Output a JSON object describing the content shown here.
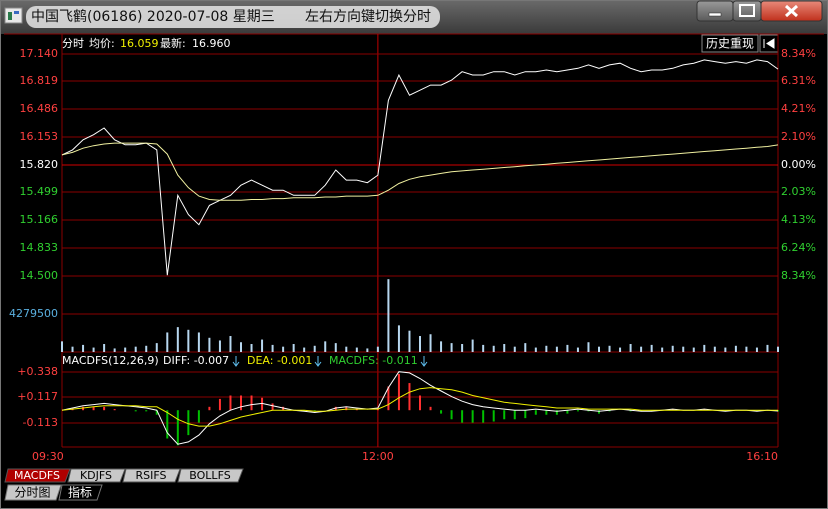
{
  "window": {
    "title": "中国飞鹤(06186) 2020-07-08 星期三",
    "hint": "左右方向键切换分时"
  },
  "toolbar": {
    "mode": "分时",
    "avg_label": "均价:",
    "avg": "16.059",
    "last_label": "最新:",
    "last": "16.960",
    "history_button": "历史重现"
  },
  "macd_header": {
    "name": "MACDFS(12,26,9)",
    "diff": "DIFF: -0.007",
    "dea": "DEA: -0.001",
    "macdfs": "MACDFS: -0.011"
  },
  "indicator_tabs": [
    "MACDFS",
    "KDJFS",
    "RSIFS",
    "BOLLFS"
  ],
  "view_tabs": [
    "分时图",
    "指标"
  ],
  "chart_data": [
    {
      "type": "line",
      "ylim": [
        14.5,
        17.14
      ],
      "yticks": [
        {
          "value": 17.14,
          "label": "17.140"
        },
        {
          "value": 16.819,
          "label": "16.819"
        },
        {
          "value": 16.486,
          "label": "16.486"
        },
        {
          "value": 16.153,
          "label": "16.153"
        },
        {
          "value": 15.82,
          "label": "15.820"
        },
        {
          "value": 15.499,
          "label": "15.499"
        },
        {
          "value": 15.166,
          "label": "15.166"
        },
        {
          "value": 14.833,
          "label": "14.833"
        },
        {
          "value": 14.5,
          "label": "14.500"
        }
      ],
      "y2lim": [
        -8.34,
        8.34
      ],
      "y2ticks": [
        {
          "value": 8.34,
          "label": "8.34%"
        },
        {
          "value": 6.31,
          "label": "6.31%"
        },
        {
          "value": 4.21,
          "label": "4.21%"
        },
        {
          "value": 2.1,
          "label": "2.10%"
        },
        {
          "value": 0,
          "label": "0.00%"
        },
        {
          "value": -2.03,
          "label": "2.03%"
        },
        {
          "value": -4.13,
          "label": "4.13%"
        },
        {
          "value": -6.24,
          "label": "6.24%"
        },
        {
          "value": -8.34,
          "label": "8.34%"
        }
      ],
      "grid": true,
      "series": [
        {
          "color": "#ffffff",
          "values": [
            15.94,
            16.0,
            16.12,
            16.18,
            16.26,
            16.12,
            16.06,
            16.06,
            16.08,
            16.0,
            14.51,
            15.46,
            15.23,
            15.11,
            15.34,
            15.4,
            15.46,
            15.58,
            15.64,
            15.58,
            15.52,
            15.52,
            15.46,
            15.46,
            15.46,
            15.58,
            15.76,
            15.64,
            15.64,
            15.61,
            15.7,
            16.59,
            16.89,
            16.65,
            16.71,
            16.77,
            16.77,
            16.83,
            16.93,
            16.89,
            16.89,
            16.93,
            16.93,
            16.89,
            16.93,
            16.93,
            16.95,
            16.93,
            16.95,
            16.97,
            17.01,
            16.97,
            17.01,
            17.03,
            16.97,
            16.93,
            16.95,
            16.95,
            16.97,
            17.01,
            17.03,
            17.07,
            17.05,
            17.03,
            17.05,
            17.03,
            17.07,
            17.05,
            16.96
          ]
        },
        {
          "color": "#f0f0a0",
          "values": [
            15.94,
            15.97,
            16.02,
            16.05,
            16.07,
            16.08,
            16.08,
            16.08,
            16.08,
            16.07,
            15.95,
            15.7,
            15.55,
            15.45,
            15.41,
            15.4,
            15.4,
            15.4,
            15.41,
            15.41,
            15.42,
            15.42,
            15.43,
            15.43,
            15.43,
            15.44,
            15.44,
            15.45,
            15.45,
            15.45,
            15.46,
            15.52,
            15.6,
            15.65,
            15.68,
            15.7,
            15.72,
            15.74,
            15.75,
            15.76,
            15.77,
            15.78,
            15.79,
            15.8,
            15.81,
            15.82,
            15.83,
            15.84,
            15.85,
            15.86,
            15.87,
            15.88,
            15.89,
            15.9,
            15.91,
            15.92,
            15.93,
            15.94,
            15.95,
            15.96,
            15.97,
            15.98,
            15.99,
            16.0,
            16.01,
            16.02,
            16.03,
            16.04,
            16.059
          ]
        }
      ]
    },
    {
      "type": "bar",
      "ylim": [
        0,
        8559000
      ],
      "yticks": [
        4279500
      ],
      "color": "#b8d8f0",
      "values": [
        1200000,
        600000,
        800000,
        500000,
        900000,
        400000,
        500000,
        600000,
        700000,
        1000000,
        2200000,
        2800000,
        2500000,
        2200000,
        1600000,
        1300000,
        1800000,
        1100000,
        900000,
        1400000,
        800000,
        600000,
        900000,
        500000,
        700000,
        1200000,
        1000000,
        600000,
        500000,
        400000,
        600000,
        8200000,
        3000000,
        2400000,
        1800000,
        2000000,
        1200000,
        1000000,
        900000,
        1400000,
        800000,
        700000,
        900000,
        600000,
        1000000,
        500000,
        700000,
        600000,
        800000,
        500000,
        1100000,
        600000,
        700000,
        500000,
        900000,
        600000,
        800000,
        500000,
        700000,
        600000,
        500000,
        800000,
        600000,
        500000,
        700000,
        600000,
        500000,
        800000,
        600000
      ]
    },
    {
      "type": "macd",
      "ylim": [
        -0.325,
        0.373
      ],
      "yticks": [
        {
          "value": 0.338,
          "label": "+0.338"
        },
        {
          "value": 0.117,
          "label": "+0.117"
        },
        -0.113
      ],
      "categories": [
        "09:30",
        null,
        null,
        null,
        null,
        null,
        null,
        null,
        null,
        null,
        null,
        null,
        null,
        null,
        null,
        null,
        null,
        null,
        null,
        null,
        null,
        null,
        null,
        null,
        null,
        null,
        null,
        null,
        null,
        null,
        "12:00",
        null,
        null,
        null,
        null,
        null,
        null,
        null,
        null,
        null,
        null,
        null,
        null,
        null,
        null,
        null,
        null,
        null,
        null,
        null,
        null,
        null,
        null,
        null,
        null,
        null,
        null,
        null,
        null,
        null,
        null,
        null,
        null,
        null,
        null,
        null,
        null,
        null,
        "16:10"
      ],
      "series": [
        {
          "type": "bar",
          "color": "#ff3030",
          "negative_color": "#00c000",
          "values": [
            0,
            0.01,
            0.03,
            0.03,
            0.03,
            0.01,
            0,
            -0.01,
            -0.01,
            -0.04,
            -0.25,
            -0.31,
            -0.22,
            -0.11,
            0.03,
            0.1,
            0.13,
            0.13,
            0.13,
            0.11,
            0.06,
            0.03,
            0,
            -0.01,
            -0.01,
            0,
            0.03,
            0.03,
            0.01,
            0,
            0.01,
            0.21,
            0.32,
            0.24,
            0.13,
            0.03,
            -0.03,
            -0.08,
            -0.11,
            -0.11,
            -0.11,
            -0.1,
            -0.08,
            -0.08,
            -0.07,
            -0.04,
            -0.04,
            -0.04,
            -0.03,
            -0.01,
            -0.01,
            -0.03,
            -0.01,
            0,
            -0.01,
            -0.01,
            -0.01,
            0,
            0.01,
            0,
            0,
            0.01,
            0,
            -0.01,
            0,
            0,
            -0.01,
            0,
            -0.011
          ]
        },
        {
          "type": "line",
          "color": "#ffffff",
          "values": [
            0.0,
            0.02,
            0.04,
            0.05,
            0.06,
            0.05,
            0.04,
            0.03,
            0.02,
            0.0,
            -0.2,
            -0.3,
            -0.28,
            -0.22,
            -0.12,
            -0.05,
            0.0,
            0.03,
            0.05,
            0.06,
            0.04,
            0.02,
            0.0,
            -0.01,
            -0.02,
            -0.01,
            0.02,
            0.03,
            0.02,
            0.01,
            0.02,
            0.2,
            0.34,
            0.33,
            0.28,
            0.22,
            0.17,
            0.12,
            0.08,
            0.05,
            0.03,
            0.02,
            0.01,
            0.0,
            0.0,
            0.01,
            0.0,
            -0.01,
            0.0,
            0.01,
            0.0,
            -0.01,
            0.0,
            0.01,
            0.0,
            -0.01,
            -0.01,
            0.0,
            0.01,
            0.0,
            0.0,
            0.01,
            0.0,
            -0.01,
            0.0,
            0.0,
            -0.01,
            0.0,
            -0.007
          ]
        },
        {
          "type": "line",
          "color": "#f0f000",
          "values": [
            0.0,
            0.01,
            0.02,
            0.03,
            0.04,
            0.04,
            0.04,
            0.04,
            0.03,
            0.03,
            -0.02,
            -0.08,
            -0.12,
            -0.14,
            -0.14,
            -0.12,
            -0.09,
            -0.06,
            -0.04,
            -0.02,
            0.0,
            0.0,
            0.0,
            0.0,
            -0.01,
            -0.01,
            0.0,
            0.01,
            0.01,
            0.01,
            0.01,
            0.05,
            0.11,
            0.16,
            0.19,
            0.2,
            0.19,
            0.18,
            0.16,
            0.13,
            0.11,
            0.09,
            0.07,
            0.06,
            0.05,
            0.04,
            0.03,
            0.02,
            0.02,
            0.02,
            0.01,
            0.01,
            0.01,
            0.01,
            0.01,
            0.0,
            0.0,
            0.0,
            0.0,
            0.0,
            0.0,
            0.0,
            0.0,
            0.0,
            0.0,
            0.0,
            0.0,
            0.0,
            -0.001
          ]
        }
      ]
    }
  ]
}
